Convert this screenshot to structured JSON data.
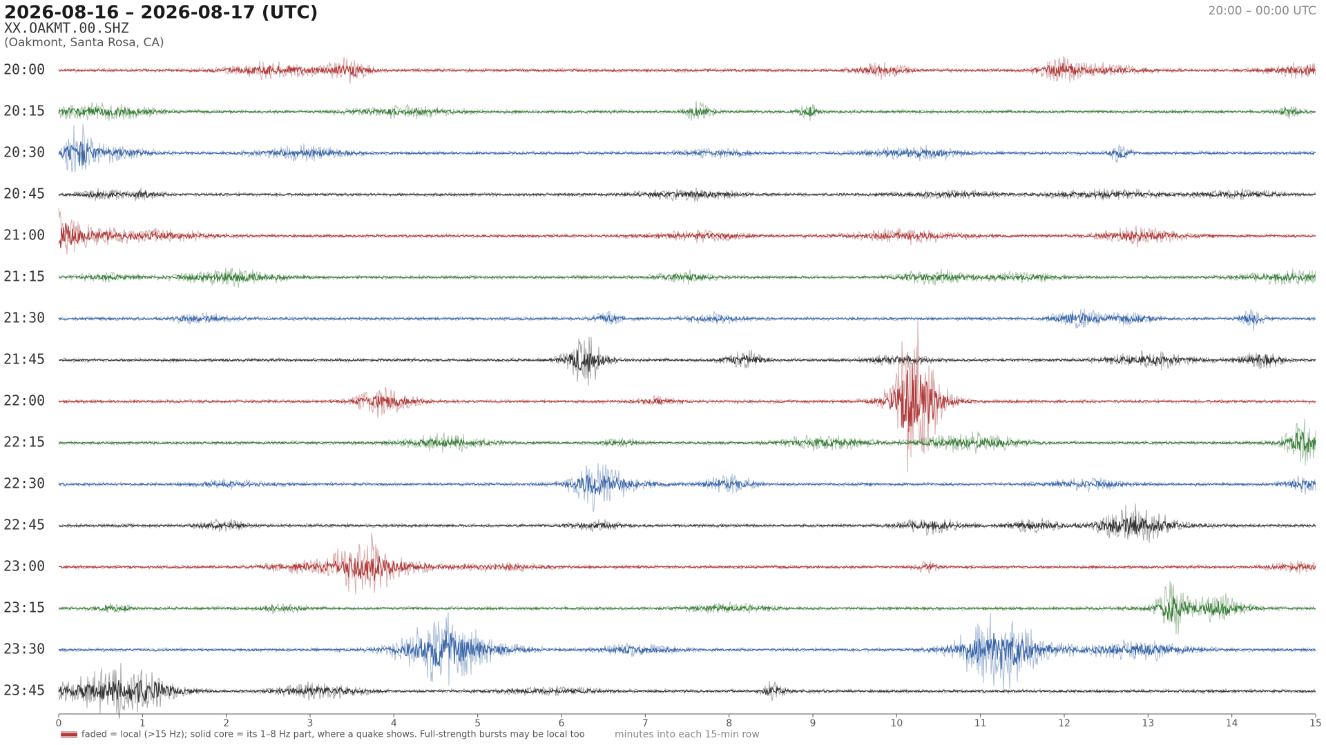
{
  "header": {
    "title": "2026-08-16 – 2026-08-17  (UTC)",
    "station": "XX.OAKMT.00.SHZ",
    "location": "(Oakmont, Santa Rosa, CA)",
    "time_range": "20:00 – 00:00 UTC"
  },
  "chart_data": {
    "type": "helicorder",
    "x_label": "minutes into each 15-min row",
    "xlim": [
      0,
      15
    ],
    "xticks": [
      0,
      1,
      2,
      3,
      4,
      5,
      6,
      7,
      8,
      9,
      10,
      11,
      12,
      13,
      14,
      15
    ],
    "rows": [
      {
        "label": "20:00",
        "color": "#b03a3a"
      },
      {
        "label": "20:15",
        "color": "#3a7d3a"
      },
      {
        "label": "20:30",
        "color": "#3a66a8"
      },
      {
        "label": "20:45",
        "color": "#333333"
      },
      {
        "label": "21:00",
        "color": "#b03a3a"
      },
      {
        "label": "21:15",
        "color": "#3a7d3a"
      },
      {
        "label": "21:30",
        "color": "#3a66a8"
      },
      {
        "label": "21:45",
        "color": "#333333"
      },
      {
        "label": "22:00",
        "color": "#b03a3a"
      },
      {
        "label": "22:15",
        "color": "#3a7d3a"
      },
      {
        "label": "22:30",
        "color": "#3a66a8"
      },
      {
        "label": "22:45",
        "color": "#333333"
      },
      {
        "label": "23:00",
        "color": "#b03a3a"
      },
      {
        "label": "23:15",
        "color": "#3a7d3a"
      },
      {
        "label": "23:30",
        "color": "#3a66a8"
      },
      {
        "label": "23:45",
        "color": "#333333"
      }
    ],
    "legend": {
      "label": "faded = local (>15 Hz); solid core = its 1–8 Hz part, where a quake shows. Full-strength bursts may be local too",
      "color": "#b03a3a"
    }
  }
}
